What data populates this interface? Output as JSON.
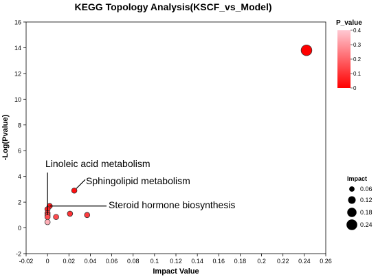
{
  "chart_data": {
    "type": "scatter",
    "title": "KEGG Topology Analysis(KSCF_vs_Model)",
    "xlabel": "Impact Value",
    "ylabel": "-Log(Pvalue)",
    "xlim": [
      -0.02,
      0.26
    ],
    "ylim": [
      -2,
      16
    ],
    "xticks": [
      "-0.02",
      "0",
      "0.02",
      "0.04",
      "0.06",
      "0.08",
      "0.1",
      "0.12",
      "0.14",
      "0.16",
      "0.18",
      "0.2",
      "0.22",
      "0.24",
      "0.26"
    ],
    "yticks": [
      "-2",
      "0",
      "2",
      "4",
      "6",
      "8",
      "10",
      "12",
      "14",
      "16"
    ],
    "points": [
      {
        "x": 0.242,
        "y": 13.8,
        "impact": 0.242,
        "p": 0.0
      },
      {
        "x": 0.025,
        "y": 2.9,
        "impact": 0.06,
        "p": 0.03
      },
      {
        "x": 0.002,
        "y": 1.7,
        "impact": 0.06,
        "p": 0.05
      },
      {
        "x": 0.0,
        "y": 1.45,
        "impact": 0.06,
        "p": 0.07
      },
      {
        "x": 0.0,
        "y": 1.15,
        "impact": 0.06,
        "p": 0.09
      },
      {
        "x": 0.0,
        "y": 1.0,
        "impact": 0.06,
        "p": 0.12
      },
      {
        "x": 0.0,
        "y": 0.85,
        "impact": 0.06,
        "p": 0.15
      },
      {
        "x": 0.008,
        "y": 0.85,
        "impact": 0.06,
        "p": 0.15
      },
      {
        "x": 0.021,
        "y": 1.1,
        "impact": 0.06,
        "p": 0.1
      },
      {
        "x": 0.037,
        "y": 1.0,
        "impact": 0.06,
        "p": 0.12
      },
      {
        "x": 0.0,
        "y": 0.45,
        "impact": 0.06,
        "p": 0.35
      }
    ],
    "annotations": [
      {
        "text": "Linoleic acid metabolism",
        "x": 0.0,
        "y": 1.0
      },
      {
        "text": "Sphingolipid metabolism",
        "x": 0.025,
        "y": 2.9
      },
      {
        "text": "Steroid hormone biosynthesis",
        "x": 0.002,
        "y": 1.7
      }
    ],
    "colorbar": {
      "title": "P_value",
      "ticks": [
        "0.4",
        "0.3",
        "0.2",
        "0.1",
        "0"
      ],
      "low_color": "#ff0000",
      "high_color": "#ffc8d2"
    },
    "size_legend": {
      "title": "Impact",
      "entries": [
        "0.06",
        "0.12",
        "0.18",
        "0.24"
      ]
    },
    "grid": false,
    "legend_position": "right"
  }
}
